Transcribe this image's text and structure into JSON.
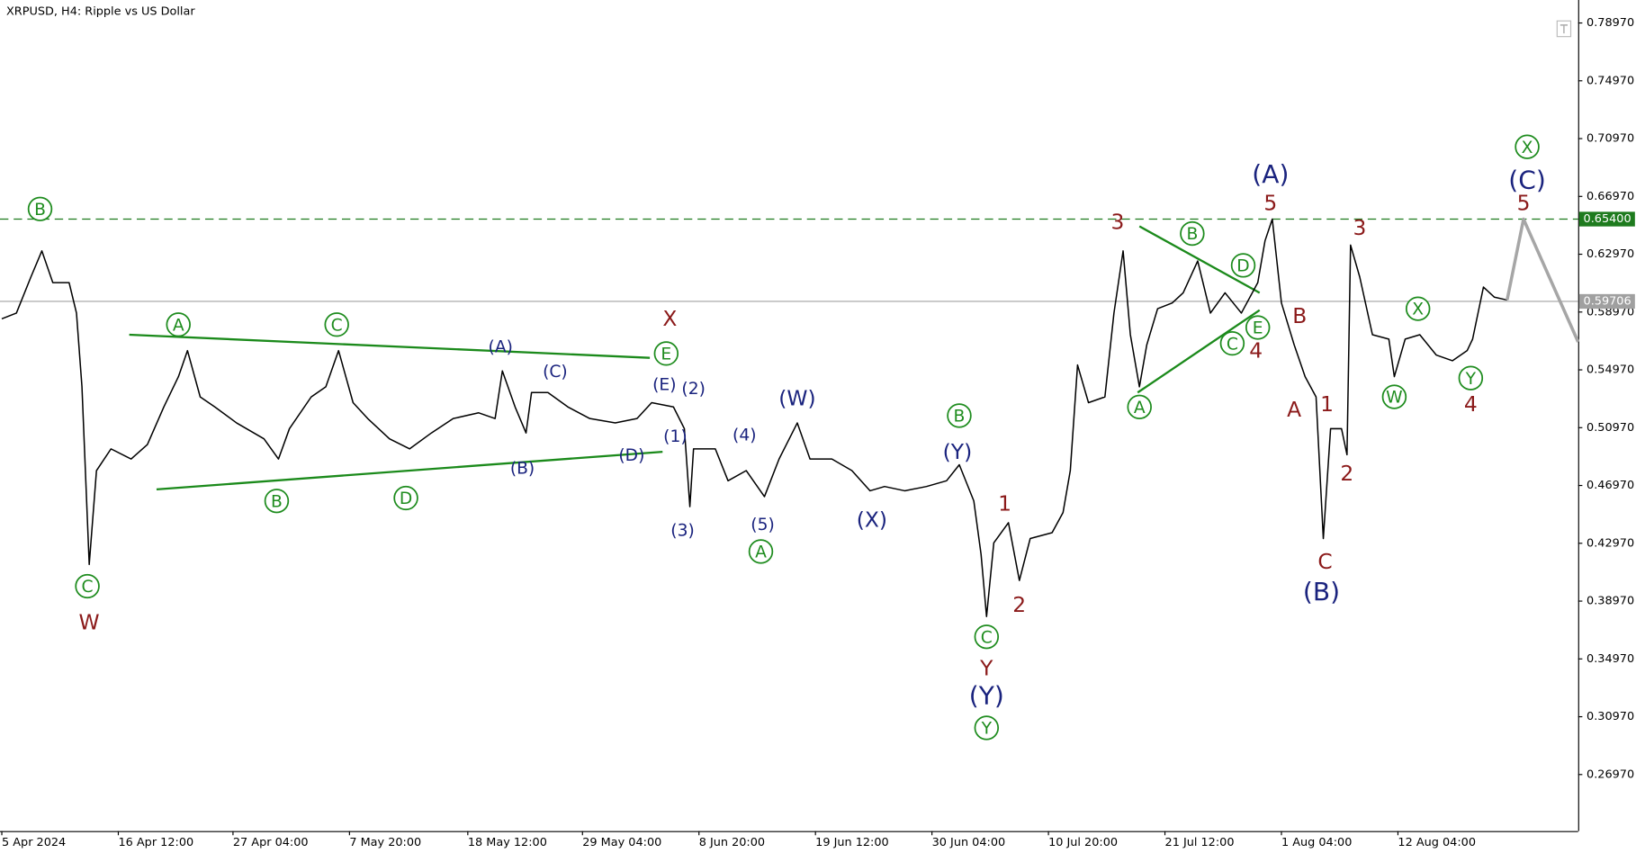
{
  "chart_data": {
    "type": "line",
    "title": "XRPUSD, H4:  Ripple vs US Dollar",
    "xlim": [
      0,
      867
    ],
    "ylim": [
      0.2306,
      0.8056
    ],
    "xticks": [
      {
        "value": 1,
        "label": "5 Apr 2024"
      },
      {
        "value": 65,
        "label": "16 Apr 12:00"
      },
      {
        "value": 128,
        "label": "27 Apr 04:00"
      },
      {
        "value": 192,
        "label": "7 May 20:00"
      },
      {
        "value": 257,
        "label": "18 May 12:00"
      },
      {
        "value": 320,
        "label": "29 May 04:00"
      },
      {
        "value": 384,
        "label": "8 Jun 20:00"
      },
      {
        "value": 448,
        "label": "19 Jun 12:00"
      },
      {
        "value": 512,
        "label": "30 Jun 04:00"
      },
      {
        "value": 576,
        "label": "10 Jul 20:00"
      },
      {
        "value": 640,
        "label": "21 Jul 12:00"
      },
      {
        "value": 704,
        "label": "1 Aug 04:00"
      },
      {
        "value": 768,
        "label": "12 Aug 04:00"
      }
    ],
    "yticks": [
      {
        "value": 0.7897,
        "label": "0.78970"
      },
      {
        "value": 0.7497,
        "label": "0.74970"
      },
      {
        "value": 0.7097,
        "label": "0.70970"
      },
      {
        "value": 0.6697,
        "label": "0.66970"
      },
      {
        "value": 0.6297,
        "label": "0.62970"
      },
      {
        "value": 0.5897,
        "label": "0.58970"
      },
      {
        "value": 0.5497,
        "label": "0.54970"
      },
      {
        "value": 0.5097,
        "label": "0.50970"
      },
      {
        "value": 0.4697,
        "label": "0.46970"
      },
      {
        "value": 0.4297,
        "label": "0.42970"
      },
      {
        "value": 0.3897,
        "label": "0.38970"
      },
      {
        "value": 0.3497,
        "label": "0.34970"
      },
      {
        "value": 0.3097,
        "label": "0.30970"
      },
      {
        "value": 0.2697,
        "label": "0.26970"
      }
    ],
    "series": [
      {
        "color": "#000000",
        "x": [
          1,
          9,
          17,
          23,
          29,
          38,
          42,
          45,
          49,
          53,
          61,
          72,
          81,
          90,
          98,
          103,
          110,
          118,
          130,
          145,
          153,
          159,
          171,
          179,
          186,
          194,
          202,
          214,
          225,
          237,
          249,
          263,
          272,
          276,
          283,
          289,
          292,
          301,
          312,
          324,
          338,
          350,
          358,
          370,
          376,
          379,
          381,
          393,
          400,
          410,
          420,
          428,
          438,
          445,
          457,
          468,
          478,
          486,
          497,
          509,
          520,
          527,
          535,
          539,
          542,
          546,
          554,
          560,
          566,
          578,
          584,
          588,
          592,
          598,
          607,
          612,
          617,
          621,
          626,
          630,
          636,
          644,
          650,
          658,
          665,
          673,
          682,
          691,
          695,
          699,
          704,
          711,
          717,
          723,
          727,
          731,
          737,
          740,
          742,
          747,
          754,
          763,
          766,
          772,
          780,
          789,
          798,
          806,
          809,
          815,
          821,
          828
        ],
        "values": [
          0.585,
          0.589,
          0.614,
          0.632,
          0.61,
          0.61,
          0.589,
          0.538,
          0.415,
          0.48,
          0.495,
          0.488,
          0.498,
          0.524,
          0.545,
          0.563,
          0.531,
          0.524,
          0.513,
          0.502,
          0.488,
          0.509,
          0.531,
          0.538,
          0.563,
          0.527,
          0.516,
          0.502,
          0.495,
          0.506,
          0.516,
          0.52,
          0.516,
          0.549,
          0.524,
          0.506,
          0.534,
          0.534,
          0.524,
          0.516,
          0.513,
          0.516,
          0.527,
          0.524,
          0.509,
          0.455,
          0.495,
          0.495,
          0.473,
          0.48,
          0.462,
          0.488,
          0.513,
          0.488,
          0.488,
          0.48,
          0.466,
          0.469,
          0.466,
          0.469,
          0.473,
          0.484,
          0.459,
          0.422,
          0.379,
          0.43,
          0.444,
          0.404,
          0.433,
          0.437,
          0.451,
          0.48,
          0.553,
          0.527,
          0.531,
          0.589,
          0.632,
          0.574,
          0.538,
          0.567,
          0.592,
          0.596,
          0.603,
          0.625,
          0.589,
          0.603,
          0.589,
          0.61,
          0.639,
          0.654,
          0.596,
          0.567,
          0.545,
          0.531,
          0.433,
          0.509,
          0.509,
          0.491,
          0.636,
          0.614,
          0.574,
          0.571,
          0.545,
          0.571,
          0.574,
          0.56,
          0.556,
          0.563,
          0.571,
          0.607,
          0.6,
          0.598
        ]
      },
      {
        "color": "#a6a6a6",
        "x": [
          828,
          837,
          867
        ],
        "values": [
          0.598,
          0.654,
          0.569
        ]
      }
    ],
    "levels": [
      {
        "value": 0.654,
        "label": "0.65400",
        "color": "#1e7b1e",
        "dashed": true
      },
      {
        "value": 0.59706,
        "label": "0.59706",
        "color": "#a0a0a0",
        "dashed": false
      }
    ],
    "trendlines": [
      {
        "x": [
          71,
          357
        ],
        "values": [
          0.574,
          0.558
        ],
        "color": "#1b8a1b"
      },
      {
        "x": [
          86,
          364
        ],
        "values": [
          0.467,
          0.493
        ],
        "color": "#1b8a1b"
      },
      {
        "x": [
          626,
          692
        ],
        "values": [
          0.649,
          0.603
        ],
        "color": "#1b8a1b"
      },
      {
        "x": [
          625,
          692
        ],
        "values": [
          0.534,
          0.591
        ],
        "color": "#1b8a1b"
      }
    ],
    "annotations": [
      {
        "text": "B",
        "x": 22,
        "y": 0.661,
        "color": "#1e8c1e",
        "style": "circled"
      },
      {
        "text": "C",
        "x": 48,
        "y": 0.4,
        "color": "#1e8c1e",
        "style": "circled"
      },
      {
        "text": "A",
        "x": 98,
        "y": 0.581,
        "color": "#1e8c1e",
        "style": "circled"
      },
      {
        "text": "C",
        "x": 185,
        "y": 0.581,
        "color": "#1e8c1e",
        "style": "circled"
      },
      {
        "text": "E",
        "x": 366,
        "y": 0.561,
        "color": "#1e8c1e",
        "style": "circled"
      },
      {
        "text": "B",
        "x": 152,
        "y": 0.459,
        "color": "#1e8c1e",
        "style": "circled"
      },
      {
        "text": "D",
        "x": 223,
        "y": 0.461,
        "color": "#1e8c1e",
        "style": "circled"
      },
      {
        "text": "A",
        "x": 418,
        "y": 0.424,
        "color": "#1e8c1e",
        "style": "circled"
      },
      {
        "text": "B",
        "x": 527,
        "y": 0.518,
        "color": "#1e8c1e",
        "style": "circled"
      },
      {
        "text": "C",
        "x": 542,
        "y": 0.365,
        "color": "#1e8c1e",
        "style": "circled"
      },
      {
        "text": "Y",
        "x": 542,
        "y": 0.302,
        "color": "#1e8c1e",
        "style": "circled"
      },
      {
        "text": "B",
        "x": 655,
        "y": 0.644,
        "color": "#1e8c1e",
        "style": "circled"
      },
      {
        "text": "D",
        "x": 683,
        "y": 0.622,
        "color": "#1e8c1e",
        "style": "circled"
      },
      {
        "text": "C",
        "x": 677,
        "y": 0.568,
        "color": "#1e8c1e",
        "style": "circled"
      },
      {
        "text": "E",
        "x": 691,
        "y": 0.579,
        "color": "#1e8c1e",
        "style": "circled"
      },
      {
        "text": "A",
        "x": 626,
        "y": 0.524,
        "color": "#1e8c1e",
        "style": "circled"
      },
      {
        "text": "X",
        "x": 779,
        "y": 0.592,
        "color": "#1e8c1e",
        "style": "circled"
      },
      {
        "text": "W",
        "x": 766,
        "y": 0.531,
        "color": "#1e8c1e",
        "style": "circled"
      },
      {
        "text": "Y",
        "x": 808,
        "y": 0.544,
        "color": "#1e8c1e",
        "style": "circled"
      },
      {
        "text": "X",
        "x": 839,
        "y": 0.704,
        "color": "#1e8c1e",
        "style": "circled"
      },
      {
        "text": "(A)",
        "x": 275,
        "y": 0.566,
        "color": "#1a237e",
        "style": "small"
      },
      {
        "text": "(C)",
        "x": 305,
        "y": 0.549,
        "color": "#1a237e",
        "style": "small"
      },
      {
        "text": "(E)",
        "x": 365,
        "y": 0.54,
        "color": "#1a237e",
        "style": "small"
      },
      {
        "text": "(2)",
        "x": 381,
        "y": 0.537,
        "color": "#1a237e",
        "style": "small"
      },
      {
        "text": "(1)",
        "x": 371,
        "y": 0.504,
        "color": "#1a237e",
        "style": "small"
      },
      {
        "text": "(B)",
        "x": 287,
        "y": 0.482,
        "color": "#1a237e",
        "style": "small"
      },
      {
        "text": "(D)",
        "x": 347,
        "y": 0.491,
        "color": "#1a237e",
        "style": "small"
      },
      {
        "text": "(3)",
        "x": 375,
        "y": 0.439,
        "color": "#1a237e",
        "style": "small"
      },
      {
        "text": "(4)",
        "x": 409,
        "y": 0.505,
        "color": "#1a237e",
        "style": "small"
      },
      {
        "text": "(5)",
        "x": 419,
        "y": 0.443,
        "color": "#1a237e",
        "style": "small"
      },
      {
        "text": "(W)",
        "x": 438,
        "y": 0.53,
        "color": "#1a237e",
        "style": "medium"
      },
      {
        "text": "(X)",
        "x": 479,
        "y": 0.446,
        "color": "#1a237e",
        "style": "medium"
      },
      {
        "text": "(Y)",
        "x": 526,
        "y": 0.493,
        "color": "#1a237e",
        "style": "medium"
      },
      {
        "text": "(Y)",
        "x": 542,
        "y": 0.324,
        "color": "#1a237e",
        "style": "large"
      },
      {
        "text": "(A)",
        "x": 698,
        "y": 0.685,
        "color": "#1a237e",
        "style": "large"
      },
      {
        "text": "(B)",
        "x": 726,
        "y": 0.396,
        "color": "#1a237e",
        "style": "large"
      },
      {
        "text": "(C)",
        "x": 839,
        "y": 0.681,
        "color": "#1a237e",
        "style": "large"
      },
      {
        "text": "W",
        "x": 49,
        "y": 0.375,
        "color": "#8b1a1a",
        "style": "medium"
      },
      {
        "text": "X",
        "x": 368,
        "y": 0.585,
        "color": "#8b1a1a",
        "style": "medium"
      },
      {
        "text": "Y",
        "x": 542,
        "y": 0.343,
        "color": "#8b1a1a",
        "style": "medium"
      },
      {
        "text": "1",
        "x": 552,
        "y": 0.457,
        "color": "#8b1a1a",
        "style": "medium"
      },
      {
        "text": "2",
        "x": 560,
        "y": 0.387,
        "color": "#8b1a1a",
        "style": "medium"
      },
      {
        "text": "3",
        "x": 614,
        "y": 0.652,
        "color": "#8b1a1a",
        "style": "medium"
      },
      {
        "text": "5",
        "x": 698,
        "y": 0.665,
        "color": "#8b1a1a",
        "style": "medium"
      },
      {
        "text": "B",
        "x": 714,
        "y": 0.587,
        "color": "#8b1a1a",
        "style": "medium"
      },
      {
        "text": "4",
        "x": 690,
        "y": 0.563,
        "color": "#8b1a1a",
        "style": "medium"
      },
      {
        "text": "A",
        "x": 711,
        "y": 0.522,
        "color": "#8b1a1a",
        "style": "medium"
      },
      {
        "text": "1",
        "x": 729,
        "y": 0.526,
        "color": "#8b1a1a",
        "style": "medium"
      },
      {
        "text": "2",
        "x": 740,
        "y": 0.478,
        "color": "#8b1a1a",
        "style": "medium"
      },
      {
        "text": "C",
        "x": 728,
        "y": 0.417,
        "color": "#8b1a1a",
        "style": "medium"
      },
      {
        "text": "3",
        "x": 747,
        "y": 0.648,
        "color": "#8b1a1a",
        "style": "medium"
      },
      {
        "text": "4",
        "x": 808,
        "y": 0.526,
        "color": "#8b1a1a",
        "style": "medium"
      },
      {
        "text": "5",
        "x": 837,
        "y": 0.665,
        "color": "#8b1a1a",
        "style": "medium"
      }
    ]
  }
}
